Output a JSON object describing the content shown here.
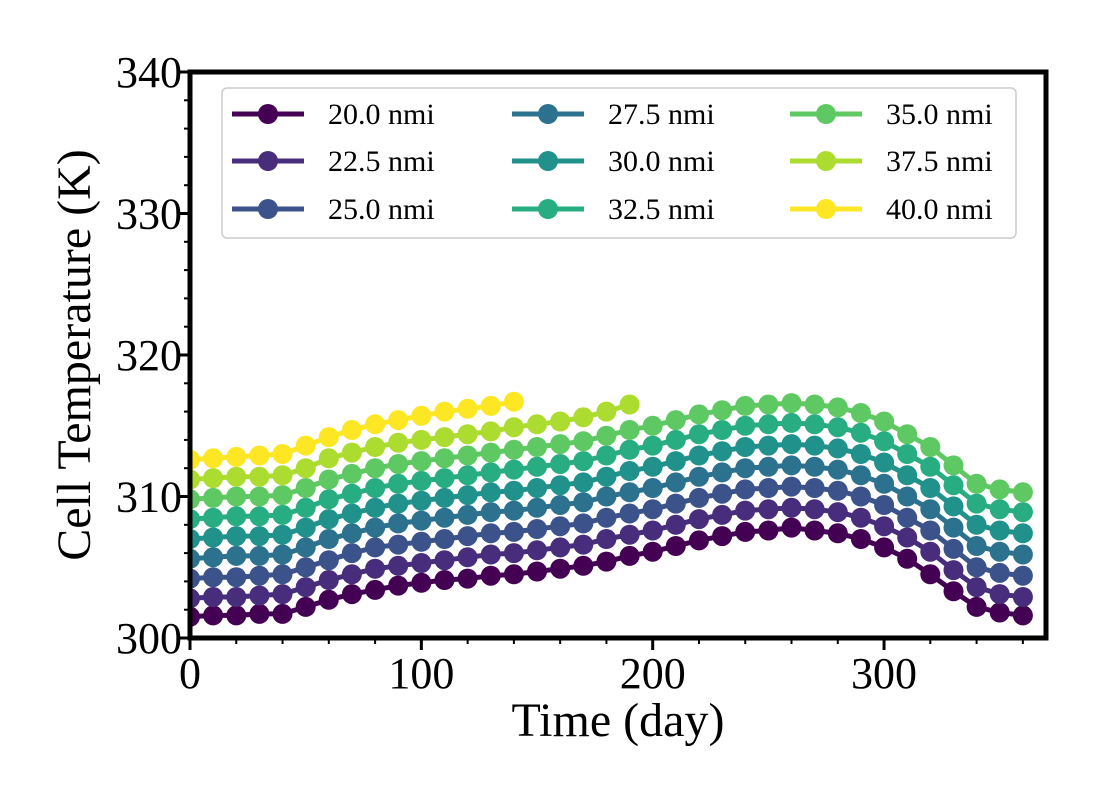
{
  "chart_data": {
    "type": "line",
    "xlabel": "Time (day)",
    "ylabel": "Cell Temperature (K)",
    "xlim": [
      0,
      370
    ],
    "ylim": [
      300,
      340
    ],
    "xticks": [
      0,
      100,
      200,
      300
    ],
    "yticks": [
      300,
      310,
      320,
      330,
      340
    ],
    "x_tick_labels": [
      "0",
      "100",
      "200",
      "300"
    ],
    "y_tick_labels": [
      "300",
      "310",
      "320",
      "330",
      "340"
    ],
    "grid": false,
    "legend_placement": "top",
    "legend_columns": 3,
    "series": [
      {
        "name": "20.0 nmi",
        "color": "#440154",
        "x": [
          0,
          10,
          20,
          30,
          40,
          50,
          60,
          70,
          80,
          90,
          100,
          110,
          120,
          130,
          140,
          150,
          160,
          170,
          180,
          190,
          200,
          210,
          220,
          230,
          240,
          250,
          260,
          270,
          280,
          290,
          300,
          310,
          320,
          330,
          340,
          350,
          360
        ],
        "y": [
          301.5,
          301.6,
          301.6,
          301.7,
          301.7,
          302.2,
          302.7,
          303.1,
          303.4,
          303.7,
          303.9,
          304.1,
          304.2,
          304.4,
          304.5,
          304.7,
          304.9,
          305.1,
          305.4,
          305.8,
          306.1,
          306.5,
          306.9,
          307.2,
          307.5,
          307.6,
          307.8,
          307.6,
          307.4,
          307.0,
          306.4,
          305.6,
          304.5,
          303.3,
          302.2,
          301.8,
          301.6
        ]
      },
      {
        "name": "22.5 nmi",
        "color": "#472d7b",
        "x": [
          0,
          10,
          20,
          30,
          40,
          50,
          60,
          70,
          80,
          90,
          100,
          110,
          120,
          130,
          140,
          150,
          160,
          170,
          180,
          190,
          200,
          210,
          220,
          230,
          240,
          250,
          260,
          270,
          280,
          290,
          300,
          310,
          320,
          330,
          340,
          350,
          360
        ],
        "y": [
          302.8,
          302.9,
          302.9,
          303.0,
          303.1,
          303.6,
          304.1,
          304.5,
          304.9,
          305.1,
          305.3,
          305.5,
          305.7,
          305.9,
          306.0,
          306.2,
          306.4,
          306.6,
          307.0,
          307.3,
          307.6,
          308.0,
          308.4,
          308.7,
          309.0,
          309.1,
          309.2,
          309.1,
          308.9,
          308.5,
          307.9,
          307.1,
          306.1,
          304.8,
          303.6,
          303.1,
          302.9
        ]
      },
      {
        "name": "25.0 nmi",
        "color": "#3b528b",
        "x": [
          0,
          10,
          20,
          30,
          40,
          50,
          60,
          70,
          80,
          90,
          100,
          110,
          120,
          130,
          140,
          150,
          160,
          170,
          180,
          190,
          200,
          210,
          220,
          230,
          240,
          250,
          260,
          270,
          280,
          290,
          300,
          310,
          320,
          330,
          340,
          350,
          360
        ],
        "y": [
          304.2,
          304.3,
          304.3,
          304.4,
          304.5,
          305.0,
          305.5,
          306.0,
          306.4,
          306.6,
          306.8,
          307.0,
          307.2,
          307.4,
          307.5,
          307.7,
          307.9,
          308.1,
          308.5,
          308.8,
          309.1,
          309.5,
          309.9,
          310.2,
          310.5,
          310.6,
          310.7,
          310.6,
          310.4,
          310.0,
          309.4,
          308.5,
          307.6,
          306.3,
          305.0,
          304.6,
          304.4
        ]
      },
      {
        "name": "27.5 nmi",
        "color": "#2c728e",
        "x": [
          0,
          10,
          20,
          30,
          40,
          50,
          60,
          70,
          80,
          90,
          100,
          110,
          120,
          130,
          140,
          150,
          160,
          170,
          180,
          190,
          200,
          210,
          220,
          230,
          240,
          250,
          260,
          270,
          280,
          290,
          300,
          310,
          320,
          330,
          340,
          350,
          360
        ],
        "y": [
          305.6,
          305.7,
          305.8,
          305.8,
          305.9,
          306.4,
          307.0,
          307.4,
          307.8,
          308.1,
          308.3,
          308.5,
          308.7,
          308.9,
          309.0,
          309.2,
          309.4,
          309.6,
          310.0,
          310.3,
          310.6,
          311.0,
          311.4,
          311.7,
          312.0,
          312.1,
          312.2,
          312.1,
          311.9,
          311.5,
          310.9,
          310.0,
          309.1,
          307.8,
          306.5,
          306.1,
          305.9
        ]
      },
      {
        "name": "30.0 nmi",
        "color": "#21918c",
        "x": [
          0,
          10,
          20,
          30,
          40,
          50,
          60,
          70,
          80,
          90,
          100,
          110,
          120,
          130,
          140,
          150,
          160,
          170,
          180,
          190,
          200,
          210,
          220,
          230,
          240,
          250,
          260,
          270,
          280,
          290,
          300,
          310,
          320,
          330,
          340,
          350,
          360
        ],
        "y": [
          307.0,
          307.1,
          307.2,
          307.2,
          307.3,
          307.8,
          308.4,
          308.8,
          309.2,
          309.5,
          309.7,
          309.9,
          310.1,
          310.3,
          310.4,
          310.6,
          310.8,
          311.0,
          311.4,
          311.8,
          312.1,
          312.5,
          312.9,
          313.2,
          313.5,
          313.6,
          313.7,
          313.6,
          313.4,
          313.0,
          312.4,
          311.5,
          310.6,
          309.3,
          308.0,
          307.6,
          307.4
        ]
      },
      {
        "name": "32.5 nmi",
        "color": "#27ad81",
        "x": [
          0,
          10,
          20,
          30,
          40,
          50,
          60,
          70,
          80,
          90,
          100,
          110,
          120,
          130,
          140,
          150,
          160,
          170,
          180,
          190,
          200,
          210,
          220,
          230,
          240,
          250,
          260,
          270,
          280,
          290,
          300,
          310,
          320,
          330,
          340,
          350,
          360
        ],
        "y": [
          308.4,
          308.5,
          308.6,
          308.6,
          308.7,
          309.2,
          309.8,
          310.2,
          310.6,
          310.9,
          311.1,
          311.3,
          311.5,
          311.7,
          311.9,
          312.1,
          312.3,
          312.5,
          312.9,
          313.3,
          313.6,
          314.0,
          314.4,
          314.7,
          315.0,
          315.1,
          315.2,
          315.1,
          314.9,
          314.5,
          313.9,
          313.0,
          312.1,
          310.8,
          309.5,
          309.1,
          308.9
        ]
      },
      {
        "name": "35.0 nmi",
        "color": "#5ec962",
        "x": [
          0,
          10,
          20,
          30,
          40,
          50,
          60,
          70,
          80,
          90,
          100,
          110,
          120,
          130,
          140,
          150,
          160,
          170,
          180,
          190,
          200,
          210,
          220,
          230,
          240,
          250,
          260,
          270,
          280,
          290,
          300,
          310,
          320,
          330,
          340,
          350,
          360
        ],
        "y": [
          309.8,
          309.9,
          310.0,
          310.0,
          310.1,
          310.6,
          311.2,
          311.6,
          312.0,
          312.3,
          312.5,
          312.7,
          312.9,
          313.1,
          313.3,
          313.5,
          313.7,
          313.9,
          314.3,
          314.7,
          315.0,
          315.4,
          315.8,
          316.1,
          316.4,
          316.5,
          316.6,
          316.5,
          316.3,
          315.9,
          315.3,
          314.4,
          313.5,
          312.2,
          310.9,
          310.5,
          310.3
        ]
      },
      {
        "name": "37.5 nmi",
        "color": "#addc30",
        "x": [
          0,
          10,
          20,
          30,
          40,
          50,
          60,
          70,
          80,
          90,
          100,
          110,
          120,
          130,
          140,
          150,
          160,
          170,
          180,
          190
        ],
        "y": [
          311.2,
          311.3,
          311.4,
          311.4,
          311.5,
          312.0,
          312.7,
          313.1,
          313.5,
          313.8,
          314.0,
          314.2,
          314.4,
          314.6,
          314.9,
          315.1,
          315.3,
          315.6,
          316.0,
          316.5
        ]
      },
      {
        "name": "40.0 nmi",
        "color": "#fde725",
        "x": [
          0,
          10,
          20,
          30,
          40,
          50,
          60,
          70,
          80,
          90,
          100,
          110,
          120,
          130,
          140
        ],
        "y": [
          312.6,
          312.7,
          312.8,
          312.9,
          313.0,
          313.6,
          314.2,
          314.7,
          315.1,
          315.4,
          315.7,
          316.0,
          316.2,
          316.4,
          316.7
        ]
      }
    ]
  }
}
